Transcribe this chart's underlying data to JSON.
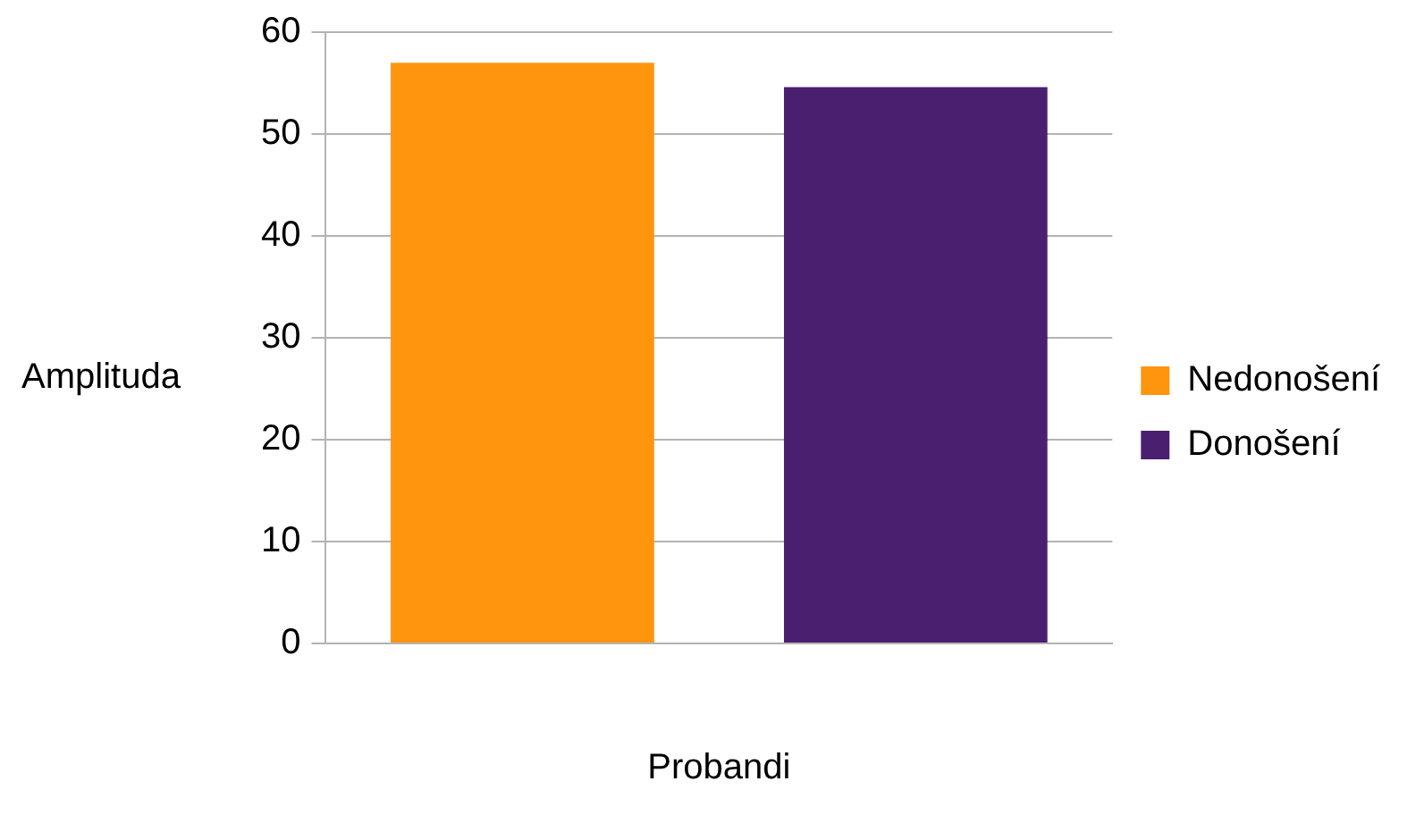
{
  "chart_data": {
    "type": "bar",
    "xlabel": "Probandi",
    "ylabel": "Amplituda",
    "categories": [
      null
    ],
    "series": [
      {
        "name": "Nedonošení",
        "color": "#ff950e",
        "values": [
          57
        ]
      },
      {
        "name": "Donošení",
        "color": "#4b1f6f",
        "values": [
          54.6
        ]
      }
    ],
    "ylim": [
      0,
      60
    ],
    "yticks": [
      0,
      10,
      20,
      30,
      40,
      50,
      60
    ],
    "grid": "y",
    "legend": "right"
  }
}
